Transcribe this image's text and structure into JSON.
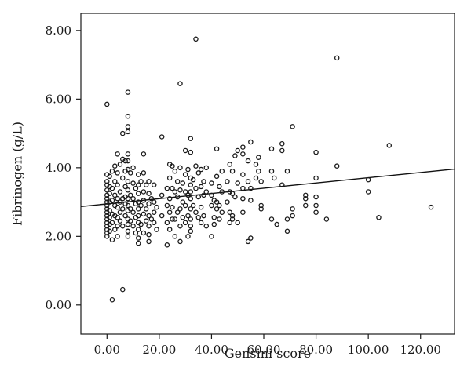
{
  "chart_data": {
    "type": "scatter",
    "title": "",
    "xlabel": "Gensini score",
    "ylabel": "Fibrinogen (g/L)",
    "xlim": [
      -10,
      133
    ],
    "ylim": [
      -0.85,
      8.5
    ],
    "x_ticks": [
      0,
      20,
      40,
      60,
      80,
      100,
      120
    ],
    "x_tick_labels": [
      "0.00",
      "20.00",
      "40.00",
      "60.00",
      "80.00",
      "100.00",
      "120.00"
    ],
    "y_ticks": [
      0,
      2,
      4,
      6,
      8
    ],
    "y_tick_labels": [
      "0.00",
      "2.00",
      "4.00",
      "6.00",
      "8.00"
    ],
    "grid": false,
    "legend": "none",
    "marker": "open-circle",
    "trend_line": {
      "x": [
        -10,
        133
      ],
      "y": [
        2.87,
        3.96
      ]
    },
    "points": [
      [
        0,
        5.85
      ],
      [
        0,
        3.8
      ],
      [
        0,
        3.6
      ],
      [
        0,
        3.5
      ],
      [
        0,
        3.35
      ],
      [
        0,
        3.2
      ],
      [
        0,
        3.1
      ],
      [
        0,
        3.0
      ],
      [
        0,
        2.9
      ],
      [
        0,
        2.8
      ],
      [
        0,
        2.7
      ],
      [
        0,
        2.6
      ],
      [
        0,
        2.5
      ],
      [
        0,
        2.4
      ],
      [
        0,
        2.3
      ],
      [
        0,
        2.2
      ],
      [
        0,
        2.1
      ],
      [
        0,
        2.0
      ],
      [
        1,
        3.75
      ],
      [
        1,
        3.45
      ],
      [
        1,
        3.25
      ],
      [
        1,
        3.0
      ],
      [
        1,
        2.75
      ],
      [
        1,
        2.55
      ],
      [
        1,
        2.35
      ],
      [
        1,
        2.15
      ],
      [
        2,
        3.9
      ],
      [
        2,
        3.4
      ],
      [
        2,
        3.05
      ],
      [
        2,
        2.65
      ],
      [
        2,
        2.4
      ],
      [
        2,
        1.9
      ],
      [
        2,
        0.15
      ],
      [
        3,
        4.05
      ],
      [
        3,
        3.6
      ],
      [
        3,
        3.2
      ],
      [
        3,
        2.9
      ],
      [
        3,
        2.6
      ],
      [
        3,
        2.2
      ],
      [
        4,
        4.4
      ],
      [
        4,
        3.85
      ],
      [
        4,
        3.5
      ],
      [
        4,
        3.1
      ],
      [
        4,
        2.85
      ],
      [
        4,
        2.55
      ],
      [
        4,
        2.3
      ],
      [
        4,
        2.0
      ],
      [
        5,
        4.1
      ],
      [
        5,
        3.3
      ],
      [
        5,
        3.0
      ],
      [
        5,
        2.7
      ],
      [
        5,
        2.45
      ],
      [
        6,
        5.0
      ],
      [
        6,
        4.25
      ],
      [
        6,
        3.7
      ],
      [
        6,
        3.1
      ],
      [
        6,
        2.8
      ],
      [
        6,
        2.3
      ],
      [
        6,
        0.45
      ],
      [
        7,
        4.2
      ],
      [
        7,
        3.9
      ],
      [
        7,
        3.45
      ],
      [
        7,
        3.15
      ],
      [
        7,
        2.95
      ],
      [
        7,
        2.6
      ],
      [
        8,
        6.2
      ],
      [
        8,
        5.5
      ],
      [
        8,
        5.2
      ],
      [
        8,
        5.05
      ],
      [
        8,
        4.4
      ],
      [
        8,
        4.2
      ],
      [
        8,
        3.95
      ],
      [
        8,
        3.6
      ],
      [
        8,
        3.35
      ],
      [
        8,
        3.1
      ],
      [
        8,
        2.9
      ],
      [
        8,
        2.75
      ],
      [
        8,
        2.5
      ],
      [
        8,
        2.35
      ],
      [
        8,
        2.15
      ],
      [
        8,
        2.0
      ],
      [
        9,
        3.85
      ],
      [
        9,
        3.2
      ],
      [
        9,
        2.8
      ],
      [
        9,
        2.45
      ],
      [
        10,
        4.0
      ],
      [
        10,
        3.55
      ],
      [
        10,
        3.1
      ],
      [
        10,
        2.7
      ],
      [
        10,
        2.3
      ],
      [
        11,
        3.4
      ],
      [
        11,
        2.95
      ],
      [
        11,
        2.55
      ],
      [
        11,
        2.1
      ],
      [
        12,
        3.8
      ],
      [
        12,
        3.5
      ],
      [
        12,
        3.25
      ],
      [
        12,
        3.0
      ],
      [
        12,
        2.8
      ],
      [
        12,
        2.6
      ],
      [
        12,
        2.4
      ],
      [
        12,
        2.2
      ],
      [
        12,
        1.95
      ],
      [
        12,
        1.8
      ],
      [
        13,
        3.6
      ],
      [
        13,
        2.9
      ],
      [
        13,
        2.35
      ],
      [
        14,
        4.4
      ],
      [
        14,
        3.85
      ],
      [
        14,
        3.3
      ],
      [
        14,
        3.05
      ],
      [
        14,
        2.65
      ],
      [
        14,
        2.1
      ],
      [
        15,
        3.5
      ],
      [
        15,
        2.8
      ],
      [
        15,
        2.45
      ],
      [
        16,
        3.6
      ],
      [
        16,
        3.25
      ],
      [
        16,
        2.95
      ],
      [
        16,
        2.6
      ],
      [
        16,
        2.3
      ],
      [
        16,
        2.05
      ],
      [
        16,
        1.85
      ],
      [
        17,
        3.1
      ],
      [
        17,
        2.5
      ],
      [
        18,
        3.5
      ],
      [
        18,
        3.0
      ],
      [
        18,
        2.7
      ],
      [
        18,
        2.4
      ],
      [
        19,
        2.85
      ],
      [
        19,
        2.2
      ],
      [
        21,
        4.9
      ],
      [
        21,
        3.2
      ],
      [
        21,
        2.6
      ],
      [
        23,
        3.4
      ],
      [
        23,
        2.9
      ],
      [
        23,
        2.4
      ],
      [
        23,
        1.75
      ],
      [
        24,
        4.1
      ],
      [
        24,
        3.7
      ],
      [
        24,
        3.1
      ],
      [
        24,
        2.7
      ],
      [
        24,
        2.2
      ],
      [
        25,
        4.05
      ],
      [
        25,
        3.4
      ],
      [
        25,
        2.85
      ],
      [
        25,
        2.5
      ],
      [
        26,
        3.9
      ],
      [
        26,
        3.3
      ],
      [
        26,
        2.5
      ],
      [
        26,
        2.0
      ],
      [
        27,
        3.6
      ],
      [
        27,
        3.15
      ],
      [
        27,
        2.7
      ],
      [
        28,
        6.45
      ],
      [
        28,
        4.0
      ],
      [
        28,
        3.35
      ],
      [
        28,
        2.8
      ],
      [
        28,
        2.3
      ],
      [
        28,
        1.85
      ],
      [
        29,
        3.55
      ],
      [
        29,
        3.0
      ],
      [
        29,
        2.55
      ],
      [
        30,
        4.5
      ],
      [
        30,
        3.8
      ],
      [
        30,
        3.3
      ],
      [
        30,
        2.9
      ],
      [
        30,
        2.4
      ],
      [
        31,
        3.95
      ],
      [
        31,
        3.2
      ],
      [
        31,
        2.6
      ],
      [
        31,
        2.0
      ],
      [
        32,
        4.85
      ],
      [
        32,
        4.45
      ],
      [
        32,
        3.7
      ],
      [
        32,
        3.5
      ],
      [
        32,
        3.3
      ],
      [
        32,
        3.1
      ],
      [
        32,
        2.8
      ],
      [
        32,
        2.5
      ],
      [
        32,
        2.3
      ],
      [
        32,
        2.15
      ],
      [
        33,
        3.65
      ],
      [
        33,
        2.9
      ],
      [
        34,
        7.75
      ],
      [
        34,
        4.05
      ],
      [
        34,
        3.4
      ],
      [
        34,
        2.7
      ],
      [
        35,
        3.85
      ],
      [
        35,
        3.15
      ],
      [
        35,
        2.55
      ],
      [
        36,
        3.95
      ],
      [
        36,
        3.45
      ],
      [
        36,
        2.85
      ],
      [
        36,
        2.4
      ],
      [
        37,
        3.6
      ],
      [
        37,
        3.2
      ],
      [
        37,
        2.6
      ],
      [
        38,
        4.0
      ],
      [
        38,
        3.3
      ],
      [
        38,
        2.3
      ],
      [
        40,
        3.55
      ],
      [
        40,
        3.2
      ],
      [
        40,
        2.9
      ],
      [
        40,
        2.0
      ],
      [
        41,
        3.05
      ],
      [
        41,
        2.55
      ],
      [
        41,
        2.35
      ],
      [
        42,
        4.55
      ],
      [
        42,
        3.75
      ],
      [
        42,
        3.0
      ],
      [
        42,
        2.8
      ],
      [
        43,
        3.45
      ],
      [
        43,
        2.9
      ],
      [
        43,
        2.5
      ],
      [
        44,
        3.9
      ],
      [
        44,
        3.3
      ],
      [
        44,
        2.7
      ],
      [
        46,
        3.6
      ],
      [
        46,
        3.0
      ],
      [
        47,
        4.1
      ],
      [
        47,
        3.3
      ],
      [
        47,
        2.7
      ],
      [
        47,
        2.4
      ],
      [
        48,
        3.9
      ],
      [
        48,
        3.25
      ],
      [
        48,
        2.6
      ],
      [
        48,
        2.5
      ],
      [
        49,
        4.35
      ],
      [
        49,
        3.15
      ],
      [
        50,
        4.5
      ],
      [
        50,
        3.55
      ],
      [
        50,
        2.4
      ],
      [
        52,
        4.6
      ],
      [
        52,
        4.4
      ],
      [
        52,
        3.8
      ],
      [
        52,
        3.4
      ],
      [
        52,
        3.1
      ],
      [
        52,
        2.7
      ],
      [
        54,
        4.2
      ],
      [
        54,
        3.6
      ],
      [
        54,
        1.85
      ],
      [
        55,
        4.75
      ],
      [
        55,
        3.4
      ],
      [
        55,
        3.05
      ],
      [
        55,
        1.95
      ],
      [
        57,
        4.1
      ],
      [
        57,
        3.7
      ],
      [
        58,
        4.3
      ],
      [
        58,
        3.9
      ],
      [
        59,
        3.6
      ],
      [
        59,
        2.9
      ],
      [
        59,
        2.8
      ],
      [
        63,
        4.55
      ],
      [
        63,
        3.9
      ],
      [
        63,
        2.5
      ],
      [
        64,
        3.7
      ],
      [
        65,
        2.35
      ],
      [
        67,
        4.7
      ],
      [
        67,
        4.5
      ],
      [
        67,
        3.5
      ],
      [
        69,
        3.9
      ],
      [
        69,
        2.5
      ],
      [
        69,
        2.15
      ],
      [
        71,
        5.2
      ],
      [
        71,
        2.8
      ],
      [
        71,
        2.6
      ],
      [
        76,
        3.2
      ],
      [
        76,
        3.1
      ],
      [
        76,
        2.9
      ],
      [
        80,
        4.45
      ],
      [
        80,
        3.7
      ],
      [
        80,
        3.15
      ],
      [
        80,
        2.9
      ],
      [
        80,
        2.7
      ],
      [
        84,
        2.5
      ],
      [
        88,
        7.2
      ],
      [
        88,
        4.05
      ],
      [
        100,
        3.65
      ],
      [
        100,
        3.3
      ],
      [
        104,
        2.55
      ],
      [
        108,
        4.65
      ],
      [
        124,
        2.85
      ]
    ]
  }
}
